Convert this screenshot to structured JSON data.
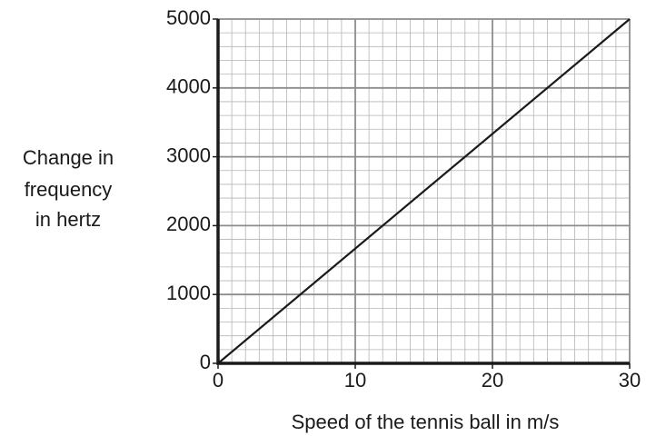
{
  "chart_data": {
    "type": "line",
    "ylabel": [
      "Change in",
      "frequency",
      "in hertz"
    ],
    "xlabel": "Speed of the tennis ball in m/s",
    "x": [
      0,
      30
    ],
    "series": [
      {
        "color": "#1a1a1a",
        "values": [
          0,
          5000
        ]
      }
    ],
    "xlim": [
      0,
      30
    ],
    "xticks": [
      0,
      10,
      20,
      30
    ],
    "ylim": [
      0,
      5000
    ],
    "yticks": [
      0,
      1000,
      2000,
      3000,
      4000,
      5000
    ],
    "grid": true
  }
}
